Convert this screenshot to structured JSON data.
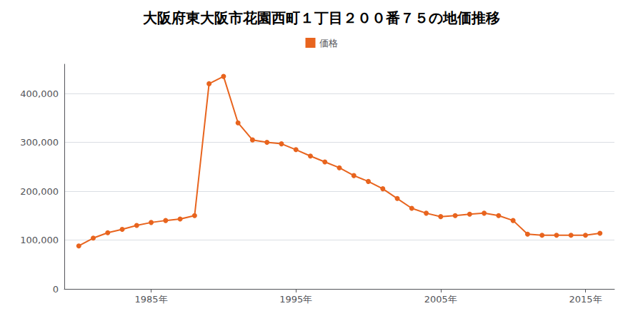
{
  "chart_data": {
    "type": "line",
    "title": "大阪府東大阪市花園西町１丁目２００番７５の地価推移",
    "x": [
      1980,
      1981,
      1982,
      1983,
      1984,
      1985,
      1986,
      1987,
      1988,
      1989,
      1990,
      1991,
      1992,
      1993,
      1994,
      1995,
      1996,
      1997,
      1998,
      1999,
      2000,
      2001,
      2002,
      2003,
      2004,
      2005,
      2006,
      2007,
      2008,
      2009,
      2010,
      2011,
      2012,
      2013,
      2014,
      2015,
      2016
    ],
    "series": [
      {
        "name": "価格",
        "color": "#e8641e",
        "values": [
          88000,
          104000,
          115000,
          122000,
          130000,
          136000,
          140000,
          143000,
          150000,
          420000,
          435000,
          340000,
          305000,
          300000,
          297000,
          285000,
          272000,
          260000,
          248000,
          232000,
          220000,
          205000,
          185000,
          165000,
          155000,
          148000,
          150000,
          153000,
          155000,
          150000,
          140000,
          112000,
          110000,
          110000,
          110000,
          110000,
          114000
        ]
      }
    ],
    "marker": "circle",
    "xlim": [
      1979,
      2017
    ],
    "xticks": [
      {
        "value": 1985,
        "label": "1985年"
      },
      {
        "value": 1995,
        "label": "1995年"
      },
      {
        "value": 2005,
        "label": "2005年"
      },
      {
        "value": 2015,
        "label": "2015年"
      }
    ],
    "ylim": [
      0,
      460000
    ],
    "yticks": [
      0,
      {
        "value": 100000,
        "label": "100,000"
      },
      {
        "value": 200000,
        "label": "200,000"
      },
      {
        "value": 300000,
        "label": "300,000"
      },
      {
        "value": 400000,
        "label": "400,000"
      }
    ],
    "grid": true,
    "legend": "top"
  }
}
